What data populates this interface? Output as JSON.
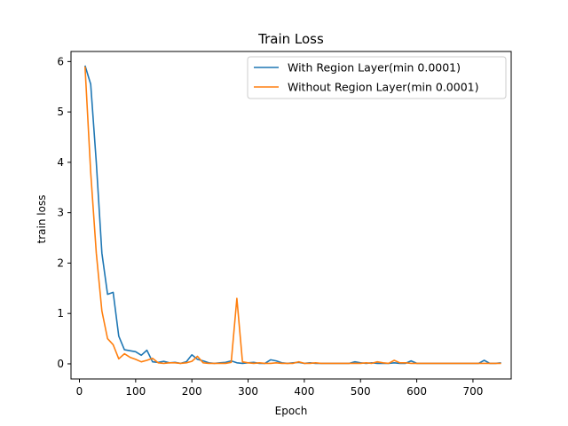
{
  "chart_data": {
    "type": "line",
    "title": "Train Loss",
    "xlabel": "Epoch",
    "ylabel": "train loss",
    "xlim": [
      -15,
      768
    ],
    "ylim": [
      -0.3,
      6.2
    ],
    "xticks": [
      0,
      100,
      200,
      300,
      400,
      500,
      600,
      700
    ],
    "yticks": [
      0,
      1,
      2,
      3,
      4,
      5,
      6
    ],
    "legend_position": "top-right",
    "grid": false,
    "series": [
      {
        "name": "With Region Layer(min 0.0001)",
        "color": "#1f77b4",
        "x": [
          10,
          20,
          30,
          40,
          50,
          60,
          70,
          80,
          90,
          100,
          110,
          120,
          130,
          140,
          150,
          160,
          170,
          180,
          190,
          200,
          210,
          220,
          230,
          240,
          250,
          260,
          270,
          280,
          290,
          300,
          310,
          320,
          330,
          340,
          350,
          360,
          370,
          380,
          390,
          400,
          410,
          420,
          430,
          440,
          450,
          460,
          470,
          480,
          490,
          500,
          510,
          520,
          530,
          540,
          550,
          560,
          570,
          580,
          590,
          600,
          610,
          620,
          630,
          640,
          650,
          660,
          670,
          680,
          690,
          700,
          710,
          720,
          730,
          740,
          750
        ],
        "y": [
          5.92,
          5.55,
          4.0,
          2.2,
          1.38,
          1.42,
          0.55,
          0.28,
          0.26,
          0.24,
          0.17,
          0.27,
          0.04,
          0.03,
          0.05,
          0.02,
          0.03,
          0.01,
          0.04,
          0.18,
          0.09,
          0.06,
          0.02,
          0.01,
          0.02,
          0.03,
          0.06,
          0.02,
          0.01,
          0.02,
          0.03,
          0.01,
          0.01,
          0.08,
          0.06,
          0.02,
          0.01,
          0.02,
          0.03,
          0.01,
          0.02,
          0.01,
          0.01,
          0.01,
          0.01,
          0.01,
          0.01,
          0.01,
          0.04,
          0.02,
          0.01,
          0.02,
          0.01,
          0.01,
          0.01,
          0.02,
          0.01,
          0.01,
          0.06,
          0.01,
          0.01,
          0.01,
          0.01,
          0.01,
          0.01,
          0.01,
          0.01,
          0.01,
          0.01,
          0.01,
          0.01,
          0.07,
          0.01,
          0.01,
          0.02
        ]
      },
      {
        "name": "Without Region Layer(min 0.0001)",
        "color": "#ff7f0e",
        "x": [
          10,
          20,
          30,
          40,
          50,
          60,
          70,
          80,
          90,
          100,
          110,
          120,
          130,
          140,
          150,
          160,
          170,
          180,
          190,
          200,
          210,
          220,
          230,
          240,
          250,
          260,
          270,
          280,
          290,
          300,
          310,
          320,
          330,
          340,
          350,
          360,
          370,
          380,
          390,
          400,
          410,
          420,
          430,
          440,
          450,
          460,
          470,
          480,
          490,
          500,
          510,
          520,
          530,
          540,
          550,
          560,
          570,
          580,
          590,
          600,
          610,
          620,
          630,
          640,
          650,
          660,
          670,
          680,
          690,
          700,
          710,
          720,
          730,
          740,
          750
        ],
        "y": [
          5.9,
          3.8,
          2.2,
          1.05,
          0.5,
          0.38,
          0.1,
          0.2,
          0.13,
          0.09,
          0.04,
          0.07,
          0.11,
          0.02,
          0.01,
          0.02,
          0.02,
          0.01,
          0.02,
          0.05,
          0.15,
          0.02,
          0.01,
          0.01,
          0.01,
          0.01,
          0.03,
          1.3,
          0.04,
          0.02,
          0.01,
          0.02,
          0.01,
          0.01,
          0.02,
          0.01,
          0.01,
          0.01,
          0.04,
          0.01,
          0.01,
          0.02,
          0.01,
          0.01,
          0.01,
          0.01,
          0.01,
          0.01,
          0.01,
          0.01,
          0.02,
          0.01,
          0.04,
          0.02,
          0.01,
          0.07,
          0.02,
          0.02,
          0.01,
          0.01,
          0.01,
          0.01,
          0.01,
          0.01,
          0.01,
          0.01,
          0.01,
          0.01,
          0.01,
          0.01,
          0.01,
          0.01,
          0.01,
          0.01,
          0.01
        ]
      }
    ]
  }
}
